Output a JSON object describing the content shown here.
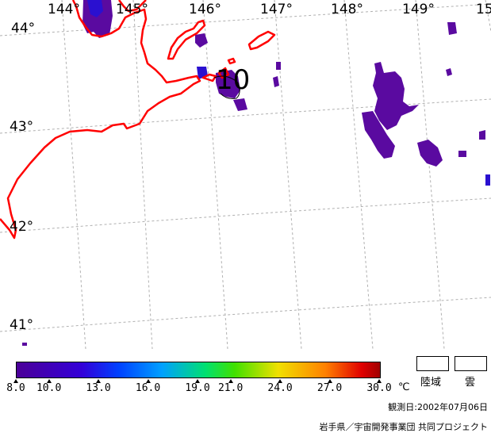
{
  "longitude_labels": [
    "144°",
    "145°",
    "146°",
    "147°",
    "148°",
    "149°",
    "15"
  ],
  "latitude_labels": [
    "44°",
    "43°",
    "42°",
    "41°"
  ],
  "contour_label": "10",
  "colorbar": {
    "ticks": [
      "8.0",
      "10.0",
      "13.0",
      "16.0",
      "19.0",
      "21.0",
      "24.0",
      "27.0",
      "30.0"
    ],
    "unit": "℃",
    "range": [
      8.0,
      30.0
    ]
  },
  "legend": {
    "land_label": "陸域",
    "cloud_label": "雲"
  },
  "observation_date": "観測日:2002年07月06日",
  "credit": "岩手県／宇宙開発事業団  共同プロジェクト",
  "colors": {
    "coastline": "#ff0000",
    "gridline": "#b0b0b0",
    "sst_low": "#5a0aa0"
  }
}
